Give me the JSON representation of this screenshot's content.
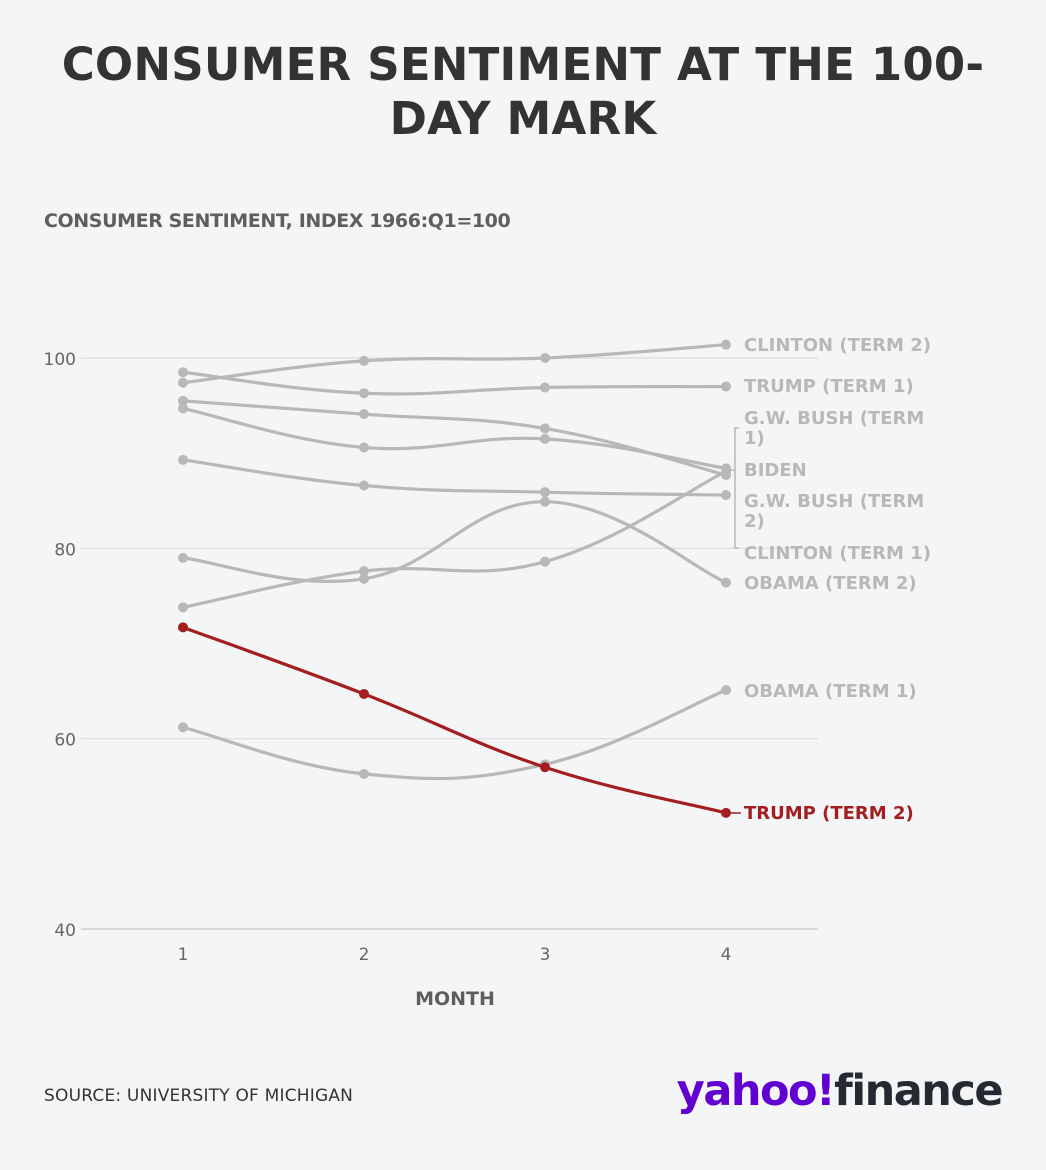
{
  "title": "CONSUMER SENTIMENT AT THE 100-DAY MARK",
  "source": "SOURCE: UNIVERSITY OF MICHIGAN",
  "logo": {
    "yahoo": "yahoo!",
    "finance": "finance"
  },
  "colors": {
    "highlight": "#a31f1f",
    "muted": "#b8b8b8",
    "grid": "#dcdcdc"
  },
  "chart_data": {
    "type": "line",
    "title": "CONSUMER SENTIMENT AT THE 100-DAY MARK",
    "subtitle": "CONSUMER SENTIMENT, INDEX 1966:Q1=100",
    "xlabel": "MONTH",
    "ylabel": "",
    "x": [
      1,
      2,
      3,
      4
    ],
    "xlim": [
      0.5,
      4.5
    ],
    "ylim": [
      40,
      100
    ],
    "yticks": [
      40,
      60,
      80,
      100
    ],
    "grid": true,
    "legend": "direct-labels-right",
    "series": [
      {
        "name": "CLINTON (TERM 2)",
        "values": [
          97.4,
          99.7,
          100.0,
          101.4
        ],
        "highlight": false
      },
      {
        "name": "TRUMP (TERM 1)",
        "values": [
          98.5,
          96.3,
          96.9,
          97.0
        ],
        "highlight": false
      },
      {
        "name": "G.W. BUSH (TERM 1)",
        "values": [
          94.7,
          90.6,
          91.5,
          88.4
        ],
        "highlight": false
      },
      {
        "name": "BIDEN",
        "values": [
          73.8,
          77.6,
          78.6,
          88.1
        ],
        "highlight": false
      },
      {
        "name": "G.W. BUSH (TERM 2)",
        "values": [
          95.5,
          94.1,
          92.6,
          87.7
        ],
        "highlight": false
      },
      {
        "name": "CLINTON (TERM 1)",
        "values": [
          89.3,
          86.6,
          85.9,
          85.6
        ],
        "highlight": false
      },
      {
        "name": "OBAMA (TERM 2)",
        "values": [
          79.0,
          76.8,
          84.9,
          76.4
        ],
        "highlight": false
      },
      {
        "name": "OBAMA (TERM 1)",
        "values": [
          61.2,
          56.3,
          57.3,
          65.1
        ],
        "highlight": false
      },
      {
        "name": "TRUMP (TERM 2)",
        "values": [
          71.7,
          64.7,
          57.0,
          52.2
        ],
        "highlight": true
      }
    ]
  }
}
